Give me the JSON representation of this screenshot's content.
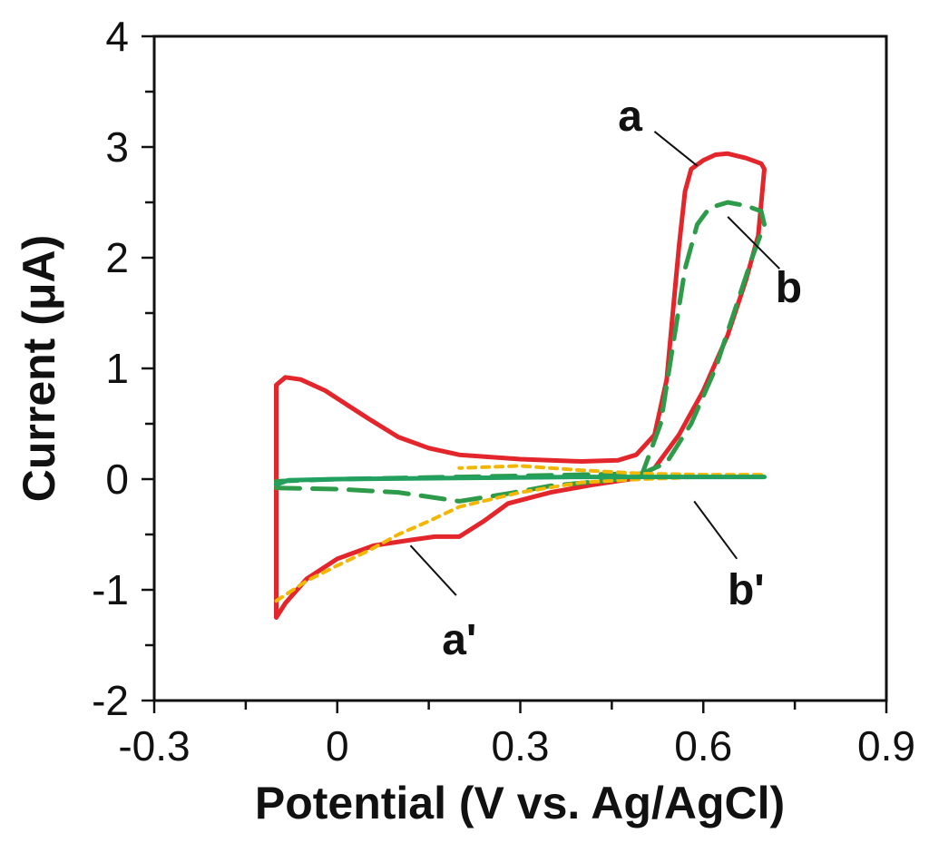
{
  "chart_data": {
    "type": "line",
    "title": "",
    "xlabel": "Potential (V vs. Ag/AgCl)",
    "ylabel": "Current (μA)",
    "xlim": [
      -0.3,
      0.9
    ],
    "ylim": [
      -2,
      4
    ],
    "xticks": [
      -0.3,
      0,
      0.3,
      0.6,
      0.9
    ],
    "xtick_labels": [
      "-0.3",
      "0",
      "0.3",
      "0.6",
      "0.9"
    ],
    "yticks": [
      -2,
      -1,
      0,
      1,
      2,
      3,
      4
    ],
    "ytick_labels": [
      "-2",
      "-1",
      "0",
      "1",
      "2",
      "3",
      "4"
    ],
    "grid": false,
    "series": [
      {
        "name": "a",
        "style": "solid",
        "color": "#e3262b",
        "points": [
          [
            -0.1,
            0.85
          ],
          [
            -0.085,
            0.92
          ],
          [
            -0.06,
            0.9
          ],
          [
            -0.02,
            0.8
          ],
          [
            0.05,
            0.55
          ],
          [
            0.1,
            0.38
          ],
          [
            0.15,
            0.28
          ],
          [
            0.2,
            0.22
          ],
          [
            0.3,
            0.18
          ],
          [
            0.4,
            0.16
          ],
          [
            0.46,
            0.17
          ],
          [
            0.49,
            0.22
          ],
          [
            0.52,
            0.4
          ],
          [
            0.54,
            0.9
          ],
          [
            0.55,
            1.5
          ],
          [
            0.56,
            2.1
          ],
          [
            0.57,
            2.6
          ],
          [
            0.58,
            2.8
          ],
          [
            0.6,
            2.88
          ],
          [
            0.62,
            2.93
          ],
          [
            0.64,
            2.94
          ],
          [
            0.67,
            2.9
          ],
          [
            0.695,
            2.85
          ],
          [
            0.7,
            2.8
          ],
          [
            0.69,
            2.2
          ],
          [
            0.67,
            1.8
          ],
          [
            0.64,
            1.3
          ],
          [
            0.6,
            0.8
          ],
          [
            0.56,
            0.4
          ],
          [
            0.52,
            0.1
          ],
          [
            0.48,
            0.0
          ],
          [
            0.42,
            -0.05
          ],
          [
            0.35,
            -0.12
          ],
          [
            0.28,
            -0.22
          ],
          [
            0.24,
            -0.38
          ],
          [
            0.2,
            -0.52
          ],
          [
            0.16,
            -0.52
          ],
          [
            0.12,
            -0.55
          ],
          [
            0.06,
            -0.6
          ],
          [
            0.0,
            -0.72
          ],
          [
            -0.05,
            -0.9
          ],
          [
            -0.085,
            -1.12
          ],
          [
            -0.1,
            -1.25
          ],
          [
            -0.1,
            0.85
          ]
        ]
      },
      {
        "name": "b",
        "style": "dashed",
        "color": "#2e9b4a",
        "points": [
          [
            -0.1,
            -0.08
          ],
          [
            0.0,
            -0.09
          ],
          [
            0.1,
            -0.12
          ],
          [
            0.2,
            -0.2
          ],
          [
            0.28,
            -0.13
          ],
          [
            0.35,
            -0.06
          ],
          [
            0.45,
            -0.01
          ],
          [
            0.5,
            0.05
          ],
          [
            0.53,
            0.5
          ],
          [
            0.55,
            1.2
          ],
          [
            0.57,
            1.9
          ],
          [
            0.59,
            2.3
          ],
          [
            0.61,
            2.45
          ],
          [
            0.64,
            2.5
          ],
          [
            0.67,
            2.47
          ],
          [
            0.695,
            2.42
          ],
          [
            0.7,
            2.3
          ],
          [
            0.68,
            2.0
          ],
          [
            0.65,
            1.5
          ],
          [
            0.62,
            1.0
          ],
          [
            0.58,
            0.5
          ],
          [
            0.54,
            0.15
          ],
          [
            0.5,
            0.05
          ],
          [
            0.4,
            0.04
          ],
          [
            0.2,
            0.02
          ],
          [
            0.0,
            0.0
          ],
          [
            -0.1,
            -0.02
          ],
          [
            -0.1,
            -0.08
          ]
        ]
      },
      {
        "name": "a'",
        "style": "dotted",
        "color": "#f2b705",
        "points": [
          [
            -0.1,
            -1.1
          ],
          [
            -0.05,
            -0.92
          ],
          [
            0.0,
            -0.78
          ],
          [
            0.05,
            -0.65
          ],
          [
            0.1,
            -0.5
          ],
          [
            0.15,
            -0.38
          ],
          [
            0.2,
            -0.25
          ],
          [
            0.3,
            -0.12
          ],
          [
            0.4,
            -0.03
          ],
          [
            0.5,
            0.0
          ],
          [
            0.6,
            0.02
          ],
          [
            0.7,
            0.04
          ],
          [
            0.6,
            0.04
          ],
          [
            0.5,
            0.05
          ],
          [
            0.4,
            0.08
          ],
          [
            0.3,
            0.12
          ],
          [
            0.2,
            0.1
          ]
        ]
      },
      {
        "name": "b'",
        "style": "solid",
        "color": "#21a060",
        "points": [
          [
            -0.1,
            -0.05
          ],
          [
            -0.08,
            -0.01
          ],
          [
            0.0,
            0.0
          ],
          [
            0.2,
            0.01
          ],
          [
            0.4,
            0.02
          ],
          [
            0.55,
            0.02
          ],
          [
            0.7,
            0.02
          ]
        ]
      }
    ],
    "annotations": [
      {
        "text": "a",
        "label_at": [
          0.48,
          3.28
        ],
        "arrow_from": [
          0.52,
          3.14
        ],
        "arrow_to": [
          0.59,
          2.83
        ]
      },
      {
        "text": "b",
        "label_at": [
          0.74,
          1.73
        ],
        "arrow_from": [
          0.725,
          1.9
        ],
        "arrow_to": [
          0.64,
          2.37
        ]
      },
      {
        "text": "a'",
        "label_at": [
          0.2,
          -1.45
        ],
        "arrow_from": [
          0.195,
          -1.05
        ],
        "arrow_to": [
          0.12,
          -0.6
        ]
      },
      {
        "text": "b'",
        "label_at": [
          0.67,
          -1.0
        ],
        "arrow_from": [
          0.655,
          -0.72
        ],
        "arrow_to": [
          0.585,
          -0.2
        ]
      }
    ]
  }
}
